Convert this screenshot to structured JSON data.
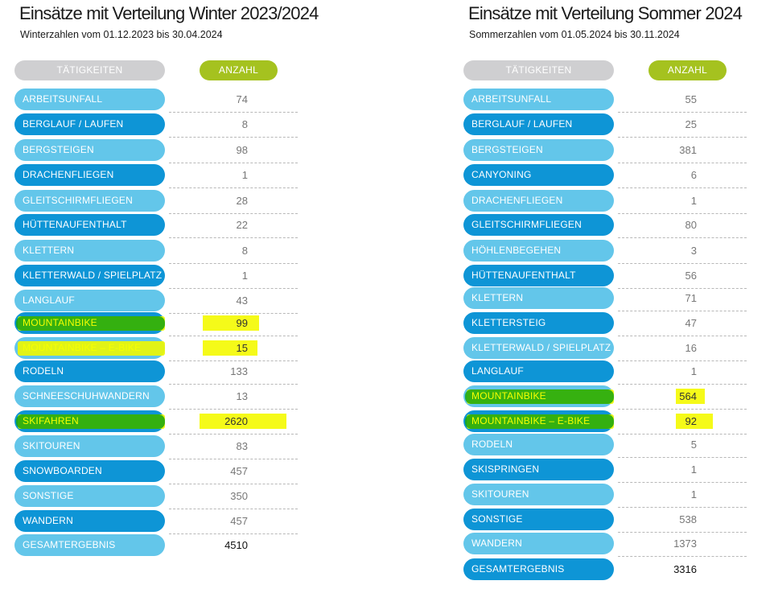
{
  "winter": {
    "title": "Einsätze mit Verteilung Winter 2023/2024",
    "subtitle": "Winterzahlen vom 01.12.2023 bis 30.04.2024",
    "header_activity": "TÄTIGKEITEN",
    "header_count": "ANZAHL",
    "rows": [
      {
        "label": "ARBEITSUNFALL",
        "value": "74"
      },
      {
        "label": "BERGLAUF / LAUFEN",
        "value": "8"
      },
      {
        "label": "BERGSTEIGEN",
        "value": "98"
      },
      {
        "label": "DRACHENFLIEGEN",
        "value": "1"
      },
      {
        "label": "GLEITSCHIRMFLIEGEN",
        "value": "28"
      },
      {
        "label": "HÜTTENAUFENTHALT",
        "value": "22"
      },
      {
        "label": "KLETTERN",
        "value": "8"
      },
      {
        "label": "KLETTERWALD / SPIELPLATZ",
        "value": "1"
      },
      {
        "label": "LANGLAUF",
        "value": "43"
      },
      {
        "label": "MOUNTAINBIKE",
        "value": "99"
      },
      {
        "label": "MOUNTAINBIKE – E-BIKE",
        "value": "15"
      },
      {
        "label": "RODELN",
        "value": "133"
      },
      {
        "label": "SCHNEESCHUHWANDERN",
        "value": "13"
      },
      {
        "label": "SKIFAHREN",
        "value": "2620"
      },
      {
        "label": "SKITOUREN",
        "value": "83"
      },
      {
        "label": "SNOWBOARDEN",
        "value": "457"
      },
      {
        "label": "SONSTIGE",
        "value": "350"
      },
      {
        "label": "WANDERN",
        "value": "457"
      },
      {
        "label": "GESAMTERGEBNIS",
        "value": "4510"
      }
    ]
  },
  "summer": {
    "title": "Einsätze mit Verteilung Sommer 2024",
    "subtitle": "Sommerzahlen vom 01.05.2024 bis 30.11.2024",
    "header_activity": "TÄTIGKEITEN",
    "header_count": "ANZAHL",
    "rows": [
      {
        "label": "ARBEITSUNFALL",
        "value": "55"
      },
      {
        "label": "BERGLAUF / LAUFEN",
        "value": "25"
      },
      {
        "label": "BERGSTEIGEN",
        "value": "381"
      },
      {
        "label": "CANYONING",
        "value": "6"
      },
      {
        "label": "DRACHENFLIEGEN",
        "value": "1"
      },
      {
        "label": "GLEITSCHIRMFLIEGEN",
        "value": "80"
      },
      {
        "label": "HÖHLENBEGEHEN",
        "value": "3"
      },
      {
        "label": "HÜTTENAUFENTHALT",
        "value": "56"
      },
      {
        "label": "KLETTERN",
        "value": "71"
      },
      {
        "label": "KLETTERSTEIG",
        "value": "47"
      },
      {
        "label": "KLETTERWALD / SPIELPLATZ",
        "value": "16"
      },
      {
        "label": "LANGLAUF",
        "value": "1"
      },
      {
        "label": "MOUNTAINBIKE",
        "value": "564"
      },
      {
        "label": "MOUNTAINBIKE – E-BIKE",
        "value": "92"
      },
      {
        "label": "RODELN",
        "value": "5"
      },
      {
        "label": "SKISPRINGEN",
        "value": "1"
      },
      {
        "label": "SKITOUREN",
        "value": "1"
      },
      {
        "label": "SONSTIGE",
        "value": "538"
      },
      {
        "label": "WANDERN",
        "value": "1373"
      },
      {
        "label": "GESAMTERGEBNIS",
        "value": "3316"
      }
    ]
  },
  "colors": {
    "pill_light": "#63c6ea",
    "pill_dark": "#0e95d6",
    "header_grey": "#cfcfd1",
    "header_green": "#a5c21f",
    "highlight_yellow": "#eef700",
    "highlight_green": "#17a50f"
  }
}
